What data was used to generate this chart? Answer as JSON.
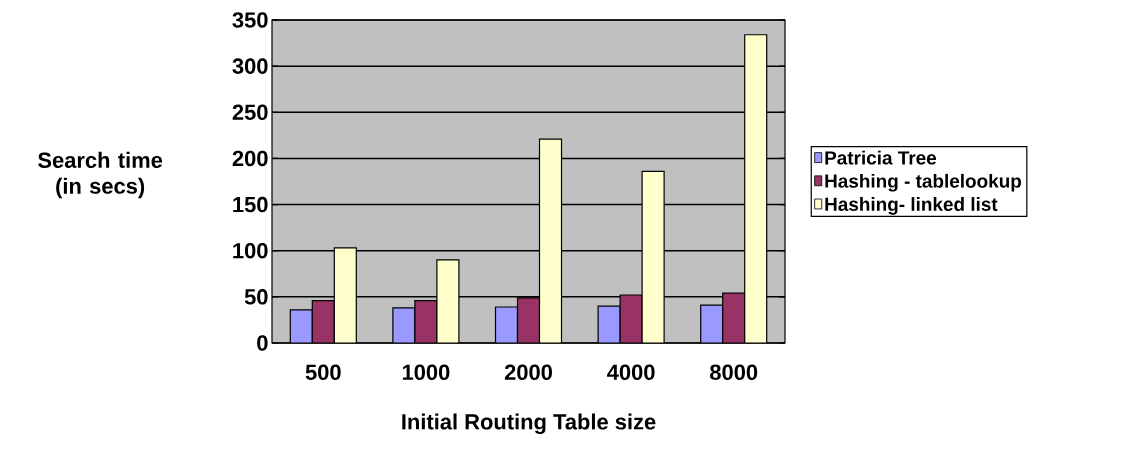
{
  "chart_data": {
    "type": "bar",
    "xlabel": "Initial Routing Table size",
    "ylabel": "Search time (in secs)",
    "categories": [
      "500",
      "1000",
      "2000",
      "4000",
      "8000"
    ],
    "series": [
      {
        "name": "Patricia Tree",
        "color": "#9999ff",
        "values": [
          36,
          38,
          39,
          40,
          41
        ]
      },
      {
        "name": "Hashing - tablelookup",
        "color": "#993366",
        "values": [
          46,
          46,
          49,
          52,
          54
        ]
      },
      {
        "name": "Hashing- linked list",
        "color": "#ffffcc",
        "values": [
          103,
          90,
          221,
          186,
          334
        ]
      }
    ],
    "ylim": [
      0,
      350
    ],
    "yticks": [
      0,
      50,
      100,
      150,
      200,
      250,
      300,
      350
    ],
    "grid": "y",
    "legend": "right"
  }
}
